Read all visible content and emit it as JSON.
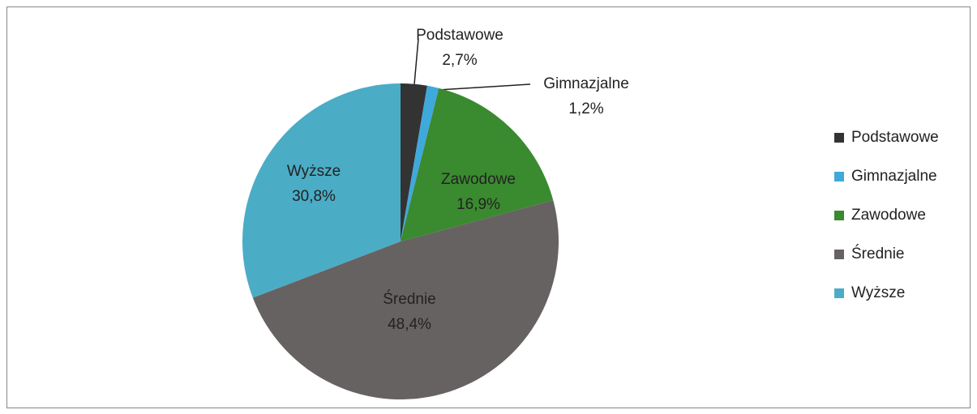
{
  "chart_data": {
    "type": "pie",
    "categories": [
      "Podstawowe",
      "Gimnazjalne",
      "Zawodowe",
      "Średnie",
      "Wyższe"
    ],
    "values": [
      2.7,
      1.2,
      16.9,
      48.4,
      30.8
    ],
    "value_labels": [
      "2,7%",
      "1,2%",
      "16,9%",
      "48,4%",
      "30,8%"
    ],
    "colors": [
      "#333333",
      "#3fa9dc",
      "#3a8a2f",
      "#676262",
      "#4bacc6"
    ],
    "legend": "right"
  }
}
